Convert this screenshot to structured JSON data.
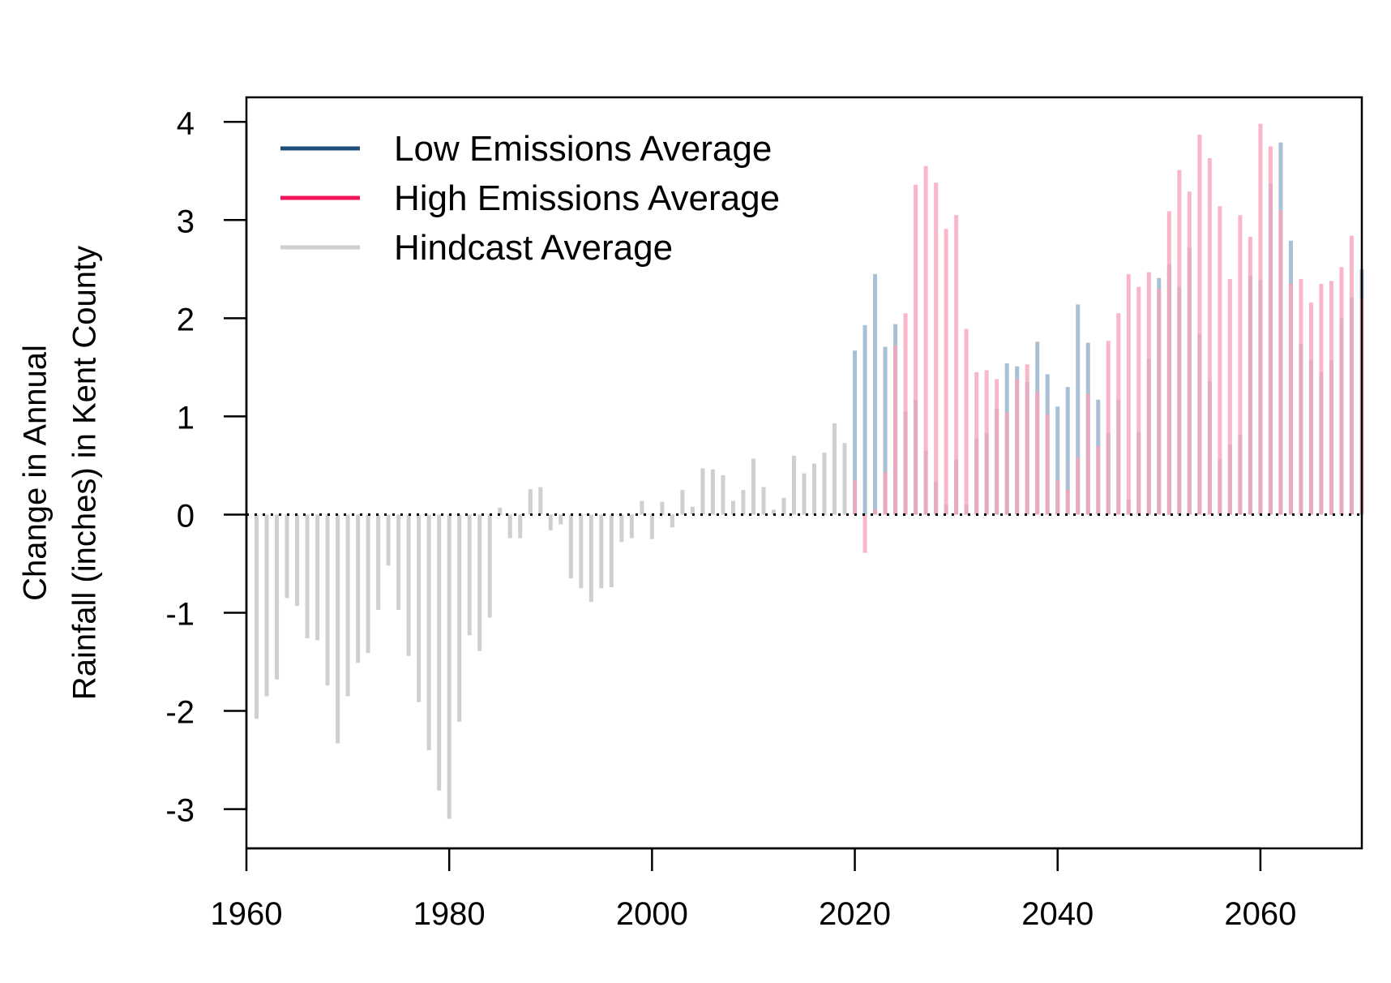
{
  "chart_data": {
    "type": "bar",
    "xlabel": "",
    "ylabel_lines": [
      "Change in Annual",
      "Rainfall (inches) in Kent County"
    ],
    "xlim": [
      1960,
      2070
    ],
    "ylim": [
      -3.4,
      4.25
    ],
    "x_ticks": [
      1960,
      1980,
      2000,
      2020,
      2040,
      2060
    ],
    "y_ticks": [
      -3,
      -2,
      -1,
      0,
      1,
      2,
      3,
      4
    ],
    "legend_position": "top-left",
    "series": [
      {
        "name": "Low Emissions Average",
        "legend_color": "#1f4e79",
        "bar_color": "#a3bdd3",
        "x": [
          2020,
          2021,
          2022,
          2023,
          2024,
          2025,
          2026,
          2027,
          2028,
          2029,
          2030,
          2031,
          2032,
          2033,
          2034,
          2035,
          2036,
          2037,
          2038,
          2039,
          2040,
          2041,
          2042,
          2043,
          2044,
          2045,
          2046,
          2047,
          2048,
          2049,
          2050,
          2051,
          2052,
          2053,
          2054,
          2055,
          2056,
          2057,
          2058,
          2059,
          2060,
          2061,
          2062,
          2063,
          2064,
          2065,
          2066,
          2067,
          2068,
          2069,
          2070
        ],
        "values": [
          1.67,
          1.93,
          2.45,
          1.71,
          1.94,
          1.05,
          1.17,
          0.65,
          0.33,
          0.1,
          0.56,
          0.1,
          0.77,
          0.83,
          1.08,
          1.54,
          1.51,
          1.35,
          1.76,
          1.43,
          1.1,
          1.3,
          2.14,
          1.75,
          1.17,
          0.83,
          1.17,
          0.15,
          0.84,
          1.59,
          2.41,
          2.55,
          2.32,
          2.72,
          1.84,
          1.36,
          0.56,
          0.71,
          0.81,
          2.43,
          2.39,
          3.37,
          3.79,
          2.79,
          1.74,
          1.57,
          1.45,
          1.57,
          2.0,
          2.21,
          2.5
        ]
      },
      {
        "name": "High Emissions Average",
        "legend_color": "#f0145a",
        "bar_color": "#f9a4bb",
        "x": [
          2020,
          2021,
          2022,
          2023,
          2024,
          2025,
          2026,
          2027,
          2028,
          2029,
          2030,
          2031,
          2032,
          2033,
          2034,
          2035,
          2036,
          2037,
          2038,
          2039,
          2040,
          2041,
          2042,
          2043,
          2044,
          2045,
          2046,
          2047,
          2048,
          2049,
          2050,
          2051,
          2052,
          2053,
          2054,
          2055,
          2056,
          2057,
          2058,
          2059,
          2060,
          2061,
          2062,
          2063,
          2064,
          2065,
          2066,
          2067,
          2068,
          2069,
          2070
        ],
        "values": [
          0.35,
          -0.39,
          0.05,
          0.43,
          1.72,
          2.05,
          3.36,
          3.55,
          3.38,
          2.91,
          3.05,
          1.89,
          1.45,
          1.47,
          1.38,
          1.04,
          1.38,
          1.53,
          1.25,
          1.02,
          0.35,
          0.25,
          0.58,
          1.23,
          0.7,
          1.77,
          2.05,
          2.45,
          2.32,
          2.47,
          2.3,
          3.09,
          3.51,
          3.29,
          3.87,
          3.63,
          3.14,
          2.4,
          3.05,
          2.83,
          3.98,
          3.75,
          3.1,
          2.35,
          2.4,
          2.16,
          2.35,
          2.38,
          2.52,
          2.84,
          2.2
        ]
      },
      {
        "name": "Hindcast Average",
        "legend_color": "#cfcfcf",
        "bar_color": "#cfcfcf",
        "x": [
          1961,
          1962,
          1963,
          1964,
          1965,
          1966,
          1967,
          1968,
          1969,
          1970,
          1971,
          1972,
          1973,
          1974,
          1975,
          1976,
          1977,
          1978,
          1979,
          1980,
          1981,
          1982,
          1983,
          1984,
          1985,
          1986,
          1987,
          1988,
          1989,
          1990,
          1991,
          1992,
          1993,
          1994,
          1995,
          1996,
          1997,
          1998,
          1999,
          2000,
          2001,
          2002,
          2003,
          2004,
          2005,
          2006,
          2007,
          2008,
          2009,
          2010,
          2011,
          2012,
          2013,
          2014,
          2015,
          2016,
          2017,
          2018,
          2019
        ],
        "values": [
          -2.08,
          -1.85,
          -1.68,
          -0.85,
          -0.93,
          -1.26,
          -1.28,
          -1.74,
          -2.33,
          -1.85,
          -1.51,
          -1.41,
          -0.97,
          -0.52,
          -0.97,
          -1.44,
          -1.91,
          -2.4,
          -2.81,
          -3.1,
          -2.11,
          -1.23,
          -1.39,
          -1.05,
          0.07,
          -0.24,
          -0.24,
          0.26,
          0.28,
          -0.16,
          -0.1,
          -0.65,
          -0.75,
          -0.89,
          -0.75,
          -0.74,
          -0.28,
          -0.24,
          0.14,
          -0.25,
          0.13,
          -0.13,
          0.25,
          0.08,
          0.47,
          0.46,
          0.4,
          0.14,
          0.25,
          0.57,
          0.28,
          0.05,
          0.17,
          0.6,
          0.42,
          0.52,
          0.63,
          0.93,
          0.73
        ]
      }
    ]
  }
}
